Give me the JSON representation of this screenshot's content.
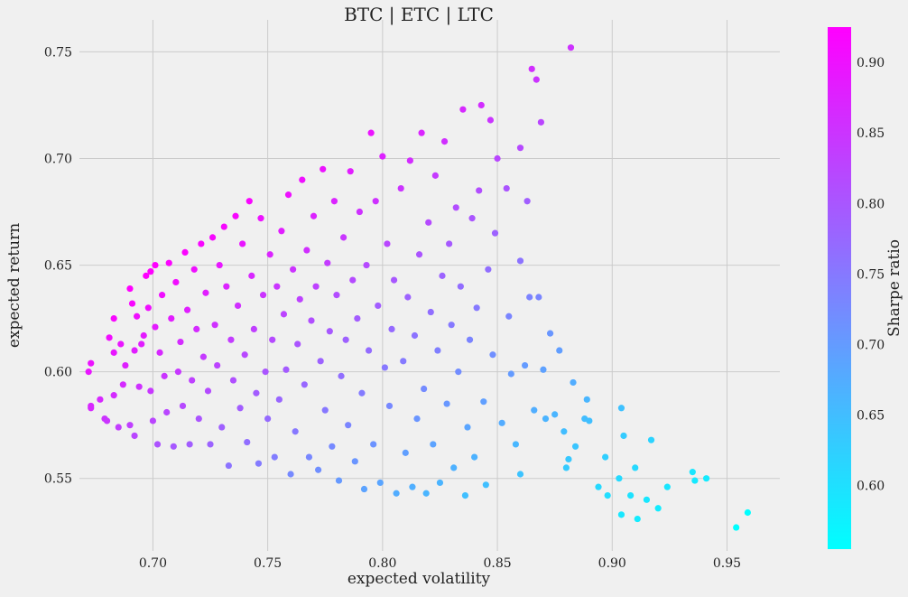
{
  "chart_data": {
    "type": "scatter",
    "title": "BTC | ETC | LTC",
    "xlabel": "expected volatility",
    "ylabel": "expected return",
    "xlim": [
      0.668,
      0.973
    ],
    "ylim": [
      0.516,
      0.765
    ],
    "xticks": [
      "0.70",
      "0.75",
      "0.80",
      "0.85",
      "0.90",
      "0.95"
    ],
    "yticks": [
      "0.55",
      "0.60",
      "0.65",
      "0.70",
      "0.75"
    ],
    "grid": true,
    "colorbar": {
      "label": "Sharpe ratio",
      "colormap": "cool",
      "range": [
        0.555,
        0.925
      ],
      "ticks": [
        "0.60",
        "0.65",
        "0.70",
        "0.75",
        "0.80",
        "0.85",
        "0.90"
      ],
      "low_color": "#00ffff",
      "high_color": "#ff00ff"
    },
    "color_value": "expected return / expected volatility",
    "points": [
      [
        0.672,
        0.6
      ],
      [
        0.673,
        0.604
      ],
      [
        0.673,
        0.584
      ],
      [
        0.673,
        0.583
      ],
      [
        0.677,
        0.587
      ],
      [
        0.679,
        0.578
      ],
      [
        0.68,
        0.577
      ],
      [
        0.681,
        0.616
      ],
      [
        0.683,
        0.625
      ],
      [
        0.683,
        0.609
      ],
      [
        0.683,
        0.589
      ],
      [
        0.685,
        0.574
      ],
      [
        0.686,
        0.613
      ],
      [
        0.687,
        0.594
      ],
      [
        0.688,
        0.603
      ],
      [
        0.69,
        0.639
      ],
      [
        0.69,
        0.575
      ],
      [
        0.691,
        0.632
      ],
      [
        0.692,
        0.61
      ],
      [
        0.692,
        0.57
      ],
      [
        0.693,
        0.626
      ],
      [
        0.694,
        0.593
      ],
      [
        0.695,
        0.613
      ],
      [
        0.696,
        0.617
      ],
      [
        0.697,
        0.645
      ],
      [
        0.698,
        0.63
      ],
      [
        0.699,
        0.647
      ],
      [
        0.699,
        0.591
      ],
      [
        0.7,
        0.577
      ],
      [
        0.701,
        0.65
      ],
      [
        0.701,
        0.621
      ],
      [
        0.702,
        0.566
      ],
      [
        0.703,
        0.609
      ],
      [
        0.704,
        0.636
      ],
      [
        0.705,
        0.598
      ],
      [
        0.706,
        0.581
      ],
      [
        0.707,
        0.651
      ],
      [
        0.708,
        0.625
      ],
      [
        0.709,
        0.565
      ],
      [
        0.71,
        0.642
      ],
      [
        0.711,
        0.6
      ],
      [
        0.712,
        0.614
      ],
      [
        0.713,
        0.584
      ],
      [
        0.714,
        0.656
      ],
      [
        0.715,
        0.629
      ],
      [
        0.716,
        0.566
      ],
      [
        0.717,
        0.596
      ],
      [
        0.718,
        0.648
      ],
      [
        0.719,
        0.62
      ],
      [
        0.72,
        0.578
      ],
      [
        0.721,
        0.66
      ],
      [
        0.722,
        0.607
      ],
      [
        0.723,
        0.637
      ],
      [
        0.724,
        0.591
      ],
      [
        0.725,
        0.566
      ],
      [
        0.726,
        0.663
      ],
      [
        0.727,
        0.622
      ],
      [
        0.728,
        0.603
      ],
      [
        0.729,
        0.65
      ],
      [
        0.73,
        0.574
      ],
      [
        0.731,
        0.668
      ],
      [
        0.732,
        0.64
      ],
      [
        0.733,
        0.556
      ],
      [
        0.734,
        0.615
      ],
      [
        0.735,
        0.596
      ],
      [
        0.736,
        0.673
      ],
      [
        0.737,
        0.631
      ],
      [
        0.738,
        0.583
      ],
      [
        0.739,
        0.66
      ],
      [
        0.74,
        0.608
      ],
      [
        0.741,
        0.567
      ],
      [
        0.742,
        0.68
      ],
      [
        0.743,
        0.645
      ],
      [
        0.744,
        0.62
      ],
      [
        0.745,
        0.59
      ],
      [
        0.746,
        0.557
      ],
      [
        0.747,
        0.672
      ],
      [
        0.748,
        0.636
      ],
      [
        0.749,
        0.6
      ],
      [
        0.75,
        0.578
      ],
      [
        0.751,
        0.655
      ],
      [
        0.752,
        0.615
      ],
      [
        0.753,
        0.56
      ],
      [
        0.754,
        0.64
      ],
      [
        0.755,
        0.587
      ],
      [
        0.756,
        0.666
      ],
      [
        0.757,
        0.627
      ],
      [
        0.758,
        0.601
      ],
      [
        0.759,
        0.683
      ],
      [
        0.76,
        0.552
      ],
      [
        0.761,
        0.648
      ],
      [
        0.762,
        0.572
      ],
      [
        0.763,
        0.613
      ],
      [
        0.764,
        0.634
      ],
      [
        0.765,
        0.69
      ],
      [
        0.766,
        0.594
      ],
      [
        0.767,
        0.657
      ],
      [
        0.768,
        0.56
      ],
      [
        0.769,
        0.624
      ],
      [
        0.77,
        0.673
      ],
      [
        0.771,
        0.64
      ],
      [
        0.772,
        0.554
      ],
      [
        0.773,
        0.605
      ],
      [
        0.774,
        0.695
      ],
      [
        0.775,
        0.582
      ],
      [
        0.776,
        0.651
      ],
      [
        0.777,
        0.619
      ],
      [
        0.778,
        0.565
      ],
      [
        0.779,
        0.68
      ],
      [
        0.78,
        0.636
      ],
      [
        0.781,
        0.549
      ],
      [
        0.782,
        0.598
      ],
      [
        0.783,
        0.663
      ],
      [
        0.784,
        0.615
      ],
      [
        0.785,
        0.575
      ],
      [
        0.786,
        0.694
      ],
      [
        0.787,
        0.643
      ],
      [
        0.788,
        0.558
      ],
      [
        0.789,
        0.625
      ],
      [
        0.79,
        0.675
      ],
      [
        0.791,
        0.59
      ],
      [
        0.792,
        0.545
      ],
      [
        0.793,
        0.65
      ],
      [
        0.794,
        0.61
      ],
      [
        0.795,
        0.712
      ],
      [
        0.796,
        0.566
      ],
      [
        0.797,
        0.68
      ],
      [
        0.798,
        0.631
      ],
      [
        0.799,
        0.548
      ],
      [
        0.8,
        0.701
      ],
      [
        0.801,
        0.602
      ],
      [
        0.802,
        0.66
      ],
      [
        0.803,
        0.584
      ],
      [
        0.804,
        0.62
      ],
      [
        0.805,
        0.643
      ],
      [
        0.806,
        0.543
      ],
      [
        0.808,
        0.686
      ],
      [
        0.809,
        0.605
      ],
      [
        0.81,
        0.562
      ],
      [
        0.811,
        0.635
      ],
      [
        0.812,
        0.699
      ],
      [
        0.813,
        0.546
      ],
      [
        0.814,
        0.617
      ],
      [
        0.815,
        0.578
      ],
      [
        0.816,
        0.655
      ],
      [
        0.817,
        0.712
      ],
      [
        0.818,
        0.592
      ],
      [
        0.819,
        0.543
      ],
      [
        0.82,
        0.67
      ],
      [
        0.821,
        0.628
      ],
      [
        0.822,
        0.566
      ],
      [
        0.823,
        0.692
      ],
      [
        0.824,
        0.61
      ],
      [
        0.825,
        0.548
      ],
      [
        0.826,
        0.645
      ],
      [
        0.827,
        0.708
      ],
      [
        0.828,
        0.585
      ],
      [
        0.829,
        0.66
      ],
      [
        0.83,
        0.622
      ],
      [
        0.831,
        0.555
      ],
      [
        0.832,
        0.677
      ],
      [
        0.833,
        0.6
      ],
      [
        0.834,
        0.64
      ],
      [
        0.835,
        0.723
      ],
      [
        0.836,
        0.542
      ],
      [
        0.837,
        0.574
      ],
      [
        0.838,
        0.615
      ],
      [
        0.839,
        0.672
      ],
      [
        0.84,
        0.56
      ],
      [
        0.841,
        0.63
      ],
      [
        0.842,
        0.685
      ],
      [
        0.843,
        0.725
      ],
      [
        0.844,
        0.586
      ],
      [
        0.845,
        0.547
      ],
      [
        0.846,
        0.648
      ],
      [
        0.847,
        0.718
      ],
      [
        0.848,
        0.608
      ],
      [
        0.849,
        0.665
      ],
      [
        0.85,
        0.7
      ],
      [
        0.852,
        0.576
      ],
      [
        0.854,
        0.686
      ],
      [
        0.855,
        0.626
      ],
      [
        0.856,
        0.599
      ],
      [
        0.858,
        0.566
      ],
      [
        0.86,
        0.705
      ],
      [
        0.86,
        0.652
      ],
      [
        0.86,
        0.552
      ],
      [
        0.862,
        0.603
      ],
      [
        0.863,
        0.68
      ],
      [
        0.864,
        0.635
      ],
      [
        0.865,
        0.742
      ],
      [
        0.866,
        0.582
      ],
      [
        0.867,
        0.737
      ],
      [
        0.868,
        0.635
      ],
      [
        0.869,
        0.717
      ],
      [
        0.87,
        0.601
      ],
      [
        0.871,
        0.578
      ],
      [
        0.873,
        0.618
      ],
      [
        0.875,
        0.58
      ],
      [
        0.877,
        0.61
      ],
      [
        0.879,
        0.572
      ],
      [
        0.88,
        0.555
      ],
      [
        0.881,
        0.559
      ],
      [
        0.882,
        0.752
      ],
      [
        0.883,
        0.595
      ],
      [
        0.884,
        0.565
      ],
      [
        0.888,
        0.578
      ],
      [
        0.889,
        0.587
      ],
      [
        0.89,
        0.577
      ],
      [
        0.894,
        0.546
      ],
      [
        0.897,
        0.56
      ],
      [
        0.898,
        0.542
      ],
      [
        0.903,
        0.55
      ],
      [
        0.904,
        0.583
      ],
      [
        0.904,
        0.533
      ],
      [
        0.905,
        0.57
      ],
      [
        0.908,
        0.542
      ],
      [
        0.91,
        0.555
      ],
      [
        0.911,
        0.531
      ],
      [
        0.915,
        0.54
      ],
      [
        0.917,
        0.568
      ],
      [
        0.92,
        0.536
      ],
      [
        0.924,
        0.546
      ],
      [
        0.935,
        0.553
      ],
      [
        0.936,
        0.549
      ],
      [
        0.941,
        0.55
      ],
      [
        0.954,
        0.527
      ],
      [
        0.959,
        0.534
      ]
    ]
  }
}
